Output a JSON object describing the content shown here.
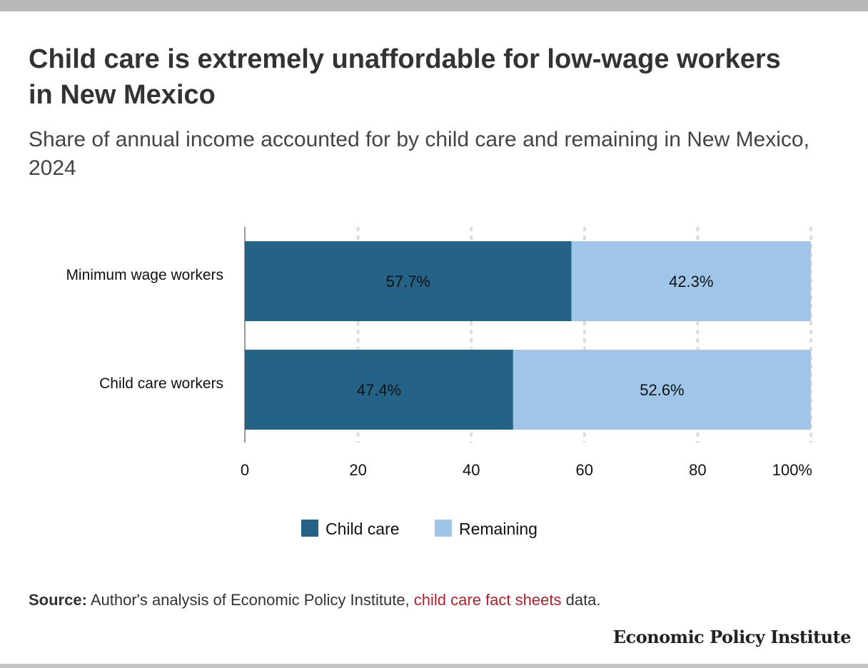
{
  "title": "Child care is extremely unaffordable for low-wage workers in New Mexico",
  "subtitle": "Share of annual income accounted for by child care and remaining in New Mexico, 2024",
  "source": {
    "label": "Source:",
    "text_before": "Author's analysis of Economic Policy Institute,",
    "link_text": "child care fact sheets",
    "text_after": "data."
  },
  "brand": "Economic Policy Institute",
  "colors": {
    "child_care": "#256386",
    "remaining": "#9fc6e8"
  },
  "chart_data": {
    "type": "bar",
    "orientation": "horizontal",
    "stacked": true,
    "categories": [
      "Minimum wage workers",
      "Child care workers"
    ],
    "series": [
      {
        "name": "Child care",
        "values": [
          57.7,
          47.4
        ],
        "labels": [
          "57.7%",
          "47.4%"
        ]
      },
      {
        "name": "Remaining",
        "values": [
          42.3,
          52.6
        ],
        "labels": [
          "42.3%",
          "52.6%"
        ]
      }
    ],
    "xlim": [
      0,
      100
    ],
    "xticks": [
      "0",
      "20",
      "40",
      "60",
      "80",
      "100%"
    ],
    "grid": true,
    "legend_position": "bottom"
  }
}
